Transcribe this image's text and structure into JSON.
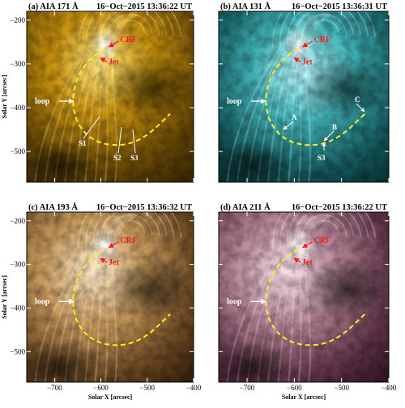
{
  "figure": {
    "panels": [
      {
        "id": "a",
        "prefix": "(a)",
        "instrument": "AIA",
        "channel": "171 Å",
        "date": "16−Oct−2015",
        "time": "13:36:22 UT",
        "palette": "sdoaia171",
        "labels": {
          "crf": "CRF",
          "jet": "Jet",
          "loop": "loop",
          "s1": "S1",
          "s2": "S2",
          "s3": "S3"
        }
      },
      {
        "id": "b",
        "prefix": "(b)",
        "instrument": "AIA",
        "channel": "131 Å",
        "date": "16−Oct−2015",
        "time": "13:36:31 UT",
        "palette": "sdoaia131",
        "labels": {
          "crf": "CRF",
          "jet": "Jet",
          "loop": "loop",
          "a": "A",
          "b": "B",
          "c": "C",
          "s3": "S3"
        }
      },
      {
        "id": "c",
        "prefix": "(c)",
        "instrument": "AIA",
        "channel": "193 Å",
        "date": "16−Oct−2015",
        "time": "13:36:32 UT",
        "palette": "sdoaia193",
        "labels": {
          "crf": "CRF",
          "jet": "Jet",
          "loop": "loop"
        }
      },
      {
        "id": "d",
        "prefix": "(d)",
        "instrument": "AIA",
        "channel": "211 Å",
        "date": "16−Oct−2015",
        "time": "13:36:22 UT",
        "palette": "sdoaia211",
        "labels": {
          "crf": "CRF",
          "jet": "Jet",
          "loop": "loop"
        }
      }
    ],
    "axes": {
      "xlabel": "Solar X [arcsec]",
      "ylabel": "Solar Y [arcsec]",
      "x_ticks": [
        "−700",
        "−600",
        "−500",
        "−400"
      ],
      "y_ticks": [
        "−200",
        "−300",
        "−400",
        "−500"
      ],
      "x_range": [
        -760,
        -400
      ],
      "y_range": [
        -570,
        -180
      ]
    },
    "colors": {
      "loop_trace": "#ffee22",
      "annotation_red": "#ff1a1a",
      "annotation_white": "#ffffff"
    }
  }
}
